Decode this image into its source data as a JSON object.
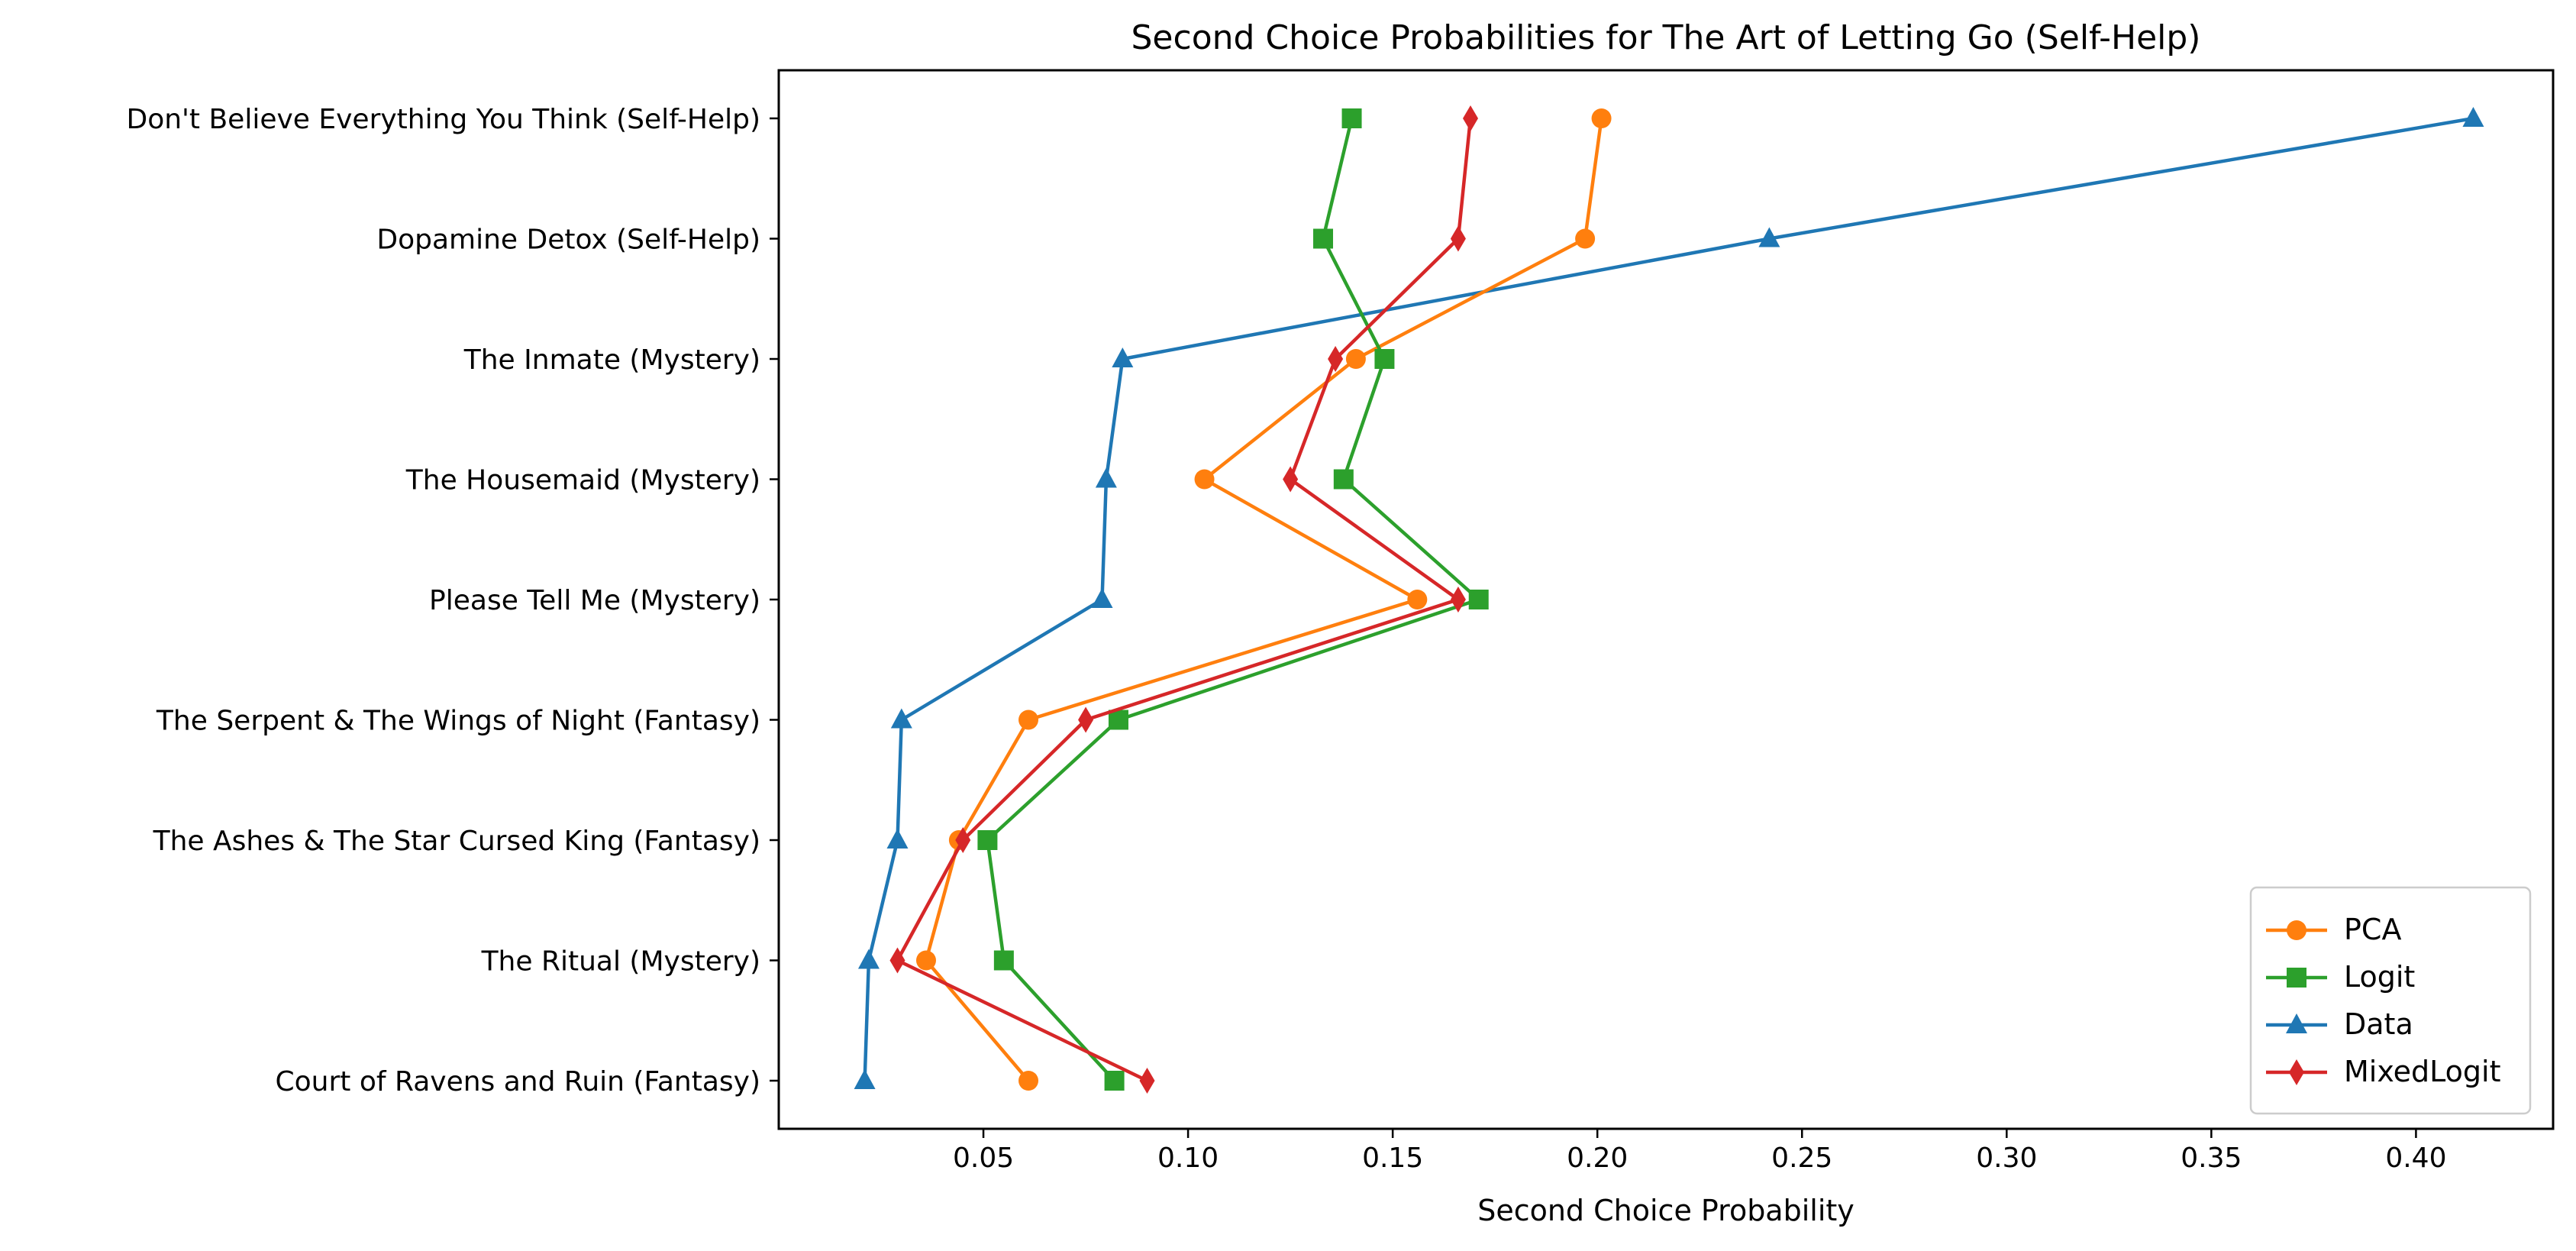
{
  "chart_data": {
    "type": "line",
    "title": "Second Choice Probabilities for The Art of Letting Go (Self-Help)",
    "xlabel": "Second Choice Probability",
    "ylabel": "",
    "xlim": [
      0.0,
      0.4335
    ],
    "xticks": [
      0.05,
      0.1,
      0.15,
      0.2,
      0.25,
      0.3,
      0.35,
      0.4
    ],
    "xtick_labels": [
      "0.05",
      "0.10",
      "0.15",
      "0.20",
      "0.25",
      "0.30",
      "0.35",
      "0.40"
    ],
    "categories": [
      "Don't Believe Everything You Think (Self-Help)",
      "Dopamine Detox (Self-Help)",
      "The Inmate (Mystery)",
      "The Housemaid (Mystery)",
      "Please Tell Me (Mystery)",
      "The Serpent & The Wings of Night (Fantasy)",
      "The Ashes & The Star Cursed King (Fantasy)",
      "The Ritual (Mystery)",
      "Court of Ravens and Ruin (Fantasy)"
    ],
    "series": [
      {
        "name": "PCA",
        "color": "#ff7f0e",
        "marker": "circle",
        "values": [
          0.201,
          0.197,
          0.141,
          0.104,
          0.156,
          0.061,
          0.044,
          0.036,
          0.061
        ]
      },
      {
        "name": "Logit",
        "color": "#2ca02c",
        "marker": "square",
        "values": [
          0.14,
          0.133,
          0.148,
          0.138,
          0.171,
          0.083,
          0.051,
          0.055,
          0.082
        ]
      },
      {
        "name": "Data",
        "color": "#1f77b4",
        "marker": "triangle",
        "values": [
          0.414,
          0.242,
          0.084,
          0.08,
          0.079,
          0.03,
          0.029,
          0.022,
          0.021
        ]
      },
      {
        "name": "MixedLogit",
        "color": "#d62728",
        "marker": "diamond",
        "values": [
          0.169,
          0.166,
          0.136,
          0.125,
          0.166,
          0.075,
          0.045,
          0.029,
          0.09
        ]
      }
    ],
    "grid": false,
    "legend_position": "lower-right"
  }
}
